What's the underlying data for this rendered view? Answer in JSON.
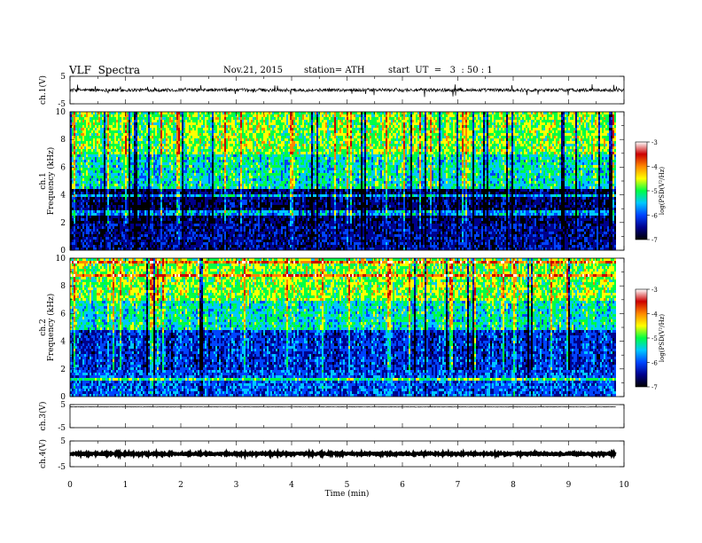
{
  "header": {
    "title": "VLF  Spectra",
    "date": "Nov.21, 2015",
    "station": "station= ATH",
    "start": "start  UT  =   3  : 50 : 1"
  },
  "chart_data": [
    {
      "type": "line",
      "name": "ch1-waveform",
      "ylabel": "ch.1(V)",
      "ylim": [
        -5,
        5
      ],
      "yticks": [
        "5",
        "-5"
      ],
      "baseline": 0,
      "spread": 0.6,
      "xlim": [
        0,
        10
      ]
    },
    {
      "type": "heatmap",
      "name": "ch1-spectrogram",
      "ylabel_top": "ch.1",
      "ylabel": "Frequency  (kHz)",
      "ylim": [
        0,
        10
      ],
      "yticks": [
        "0",
        "2",
        "4",
        "6",
        "8",
        "10"
      ],
      "xlim": [
        0,
        9.85
      ],
      "colorbar": {
        "label": "log(PSD(V²/Hz)",
        "range": [
          -7,
          -3
        ],
        "ticks": [
          "-3",
          "-4",
          "-5",
          "-6",
          "-7"
        ]
      },
      "bands": [
        {
          "f": [
            0,
            2
          ],
          "level": -6.5
        },
        {
          "f": [
            2,
            4.5
          ],
          "level": -6.7
        },
        {
          "f": [
            4.5,
            7
          ],
          "level": -5.3
        },
        {
          "f": [
            7,
            10
          ],
          "level": -4.8
        }
      ]
    },
    {
      "type": "heatmap",
      "name": "ch2-spectrogram",
      "ylabel_top": "ch.2",
      "ylabel": "Frequency  (kHz)",
      "ylim": [
        0,
        10
      ],
      "yticks": [
        "0",
        "2",
        "4",
        "6",
        "8",
        "10"
      ],
      "xlim": [
        0,
        9.85
      ],
      "colorbar": {
        "label": "log(PSD(V²/Hz)",
        "range": [
          -7,
          -3
        ],
        "ticks": [
          "-3",
          "-4",
          "-5",
          "-6",
          "-7"
        ]
      },
      "bands": [
        {
          "f": [
            0,
            2
          ],
          "level": -6.0
        },
        {
          "f": [
            2,
            5
          ],
          "level": -6.2
        },
        {
          "f": [
            5,
            7
          ],
          "level": -5.3
        },
        {
          "f": [
            7,
            10
          ],
          "level": -4.8
        }
      ]
    },
    {
      "type": "line",
      "name": "ch3-waveform",
      "ylabel": "ch.3(V)",
      "ylim": [
        -5,
        5
      ],
      "yticks": [
        "5",
        "-5"
      ],
      "baseline": 4,
      "spread": 0.1,
      "xlim": [
        0,
        9.85
      ]
    },
    {
      "type": "line",
      "name": "ch4-waveform",
      "ylabel": "ch.4(V)",
      "ylim": [
        -5,
        5
      ],
      "yticks": [
        "5",
        "-5"
      ],
      "baseline": 0,
      "spread": 0.3,
      "xlim": [
        0,
        9.85
      ]
    }
  ],
  "xaxis": {
    "label": "Time  (min)",
    "xlim": [
      0,
      10
    ],
    "ticks": [
      "0",
      "1",
      "2",
      "3",
      "4",
      "5",
      "6",
      "7",
      "8",
      "9",
      "10"
    ]
  },
  "colors": {
    "colormap": [
      "#ffffff",
      "#cc0000",
      "#ff8800",
      "#ffff00",
      "#00ff44",
      "#00c8ff",
      "#0044ff",
      "#00008c",
      "#000000"
    ],
    "trace": "#000000"
  }
}
